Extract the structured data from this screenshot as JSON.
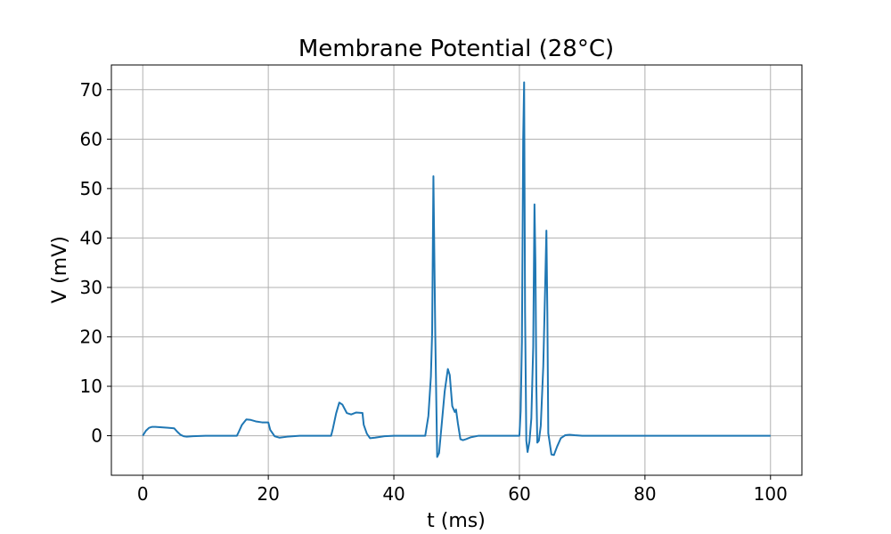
{
  "chart_data": {
    "type": "line",
    "title": "Membrane Potential (28°C)",
    "xlabel": "t (ms)",
    "ylabel": "V (mV)",
    "xlim": [
      -5,
      105
    ],
    "ylim": [
      -8,
      75
    ],
    "xticks": [
      0,
      20,
      40,
      60,
      80,
      100
    ],
    "yticks": [
      0,
      10,
      20,
      30,
      40,
      50,
      60,
      70
    ],
    "grid": true,
    "series": [
      {
        "color": "#1f77b4",
        "x": [
          0,
          0.5,
          1,
          1.5,
          2,
          3,
          4,
          5,
          5.5,
          6,
          6.5,
          7,
          8,
          10,
          12,
          15,
          15.3,
          15.8,
          16.5,
          17.2,
          18,
          19,
          20,
          20.3,
          21,
          21.8,
          23,
          25,
          30,
          30.3,
          30.8,
          31.3,
          31.8,
          32.5,
          33.2,
          34,
          35,
          35.2,
          35.7,
          36.2,
          37,
          38.5,
          40,
          45,
          45.5,
          45.9,
          46.1,
          46.3,
          46.6,
          46.9,
          47.2,
          47.6,
          48.1,
          48.6,
          48.9,
          49.3,
          49.7,
          49.9,
          50.2,
          50.6,
          51,
          51.5,
          52.3,
          53.5,
          55,
          60,
          60.2,
          60.4,
          60.6,
          60.75,
          60.9,
          61.1,
          61.3,
          61.6,
          61.9,
          62.2,
          62.4,
          62.55,
          62.7,
          62.85,
          63.1,
          63.4,
          63.8,
          64.1,
          64.3,
          64.45,
          64.6,
          64.8,
          65.1,
          65.5,
          66,
          66.6,
          67.3,
          68,
          68.8,
          70,
          72,
          80,
          90,
          100
        ],
        "y": [
          0,
          1,
          1.6,
          1.8,
          1.8,
          1.7,
          1.6,
          1.5,
          0.8,
          0.2,
          -0.1,
          -0.2,
          -0.1,
          0,
          0,
          0,
          0.8,
          2.2,
          3.3,
          3.2,
          2.9,
          2.7,
          2.7,
          1.2,
          -0.1,
          -0.4,
          -0.2,
          0,
          0,
          1.5,
          4.5,
          6.7,
          6.3,
          4.6,
          4.3,
          4.7,
          4.6,
          2.2,
          0.4,
          -0.5,
          -0.4,
          -0.1,
          0,
          0,
          4,
          12,
          21,
          52.5,
          20,
          -4.3,
          -3.5,
          2,
          9,
          13.5,
          12.3,
          6,
          4.8,
          5.3,
          2.5,
          -0.7,
          -0.9,
          -0.7,
          -0.3,
          0,
          0,
          0,
          5,
          19,
          60,
          71.5,
          25,
          -1,
          -3.3,
          -1.2,
          3.5,
          18,
          46.8,
          35,
          10,
          -1.4,
          -1,
          2,
          14,
          30,
          41.5,
          25,
          0.5,
          -1.2,
          -3.8,
          -3.9,
          -2.2,
          -0.5,
          0.1,
          0.2,
          0.1,
          0,
          0,
          0,
          0,
          0
        ]
      }
    ]
  }
}
